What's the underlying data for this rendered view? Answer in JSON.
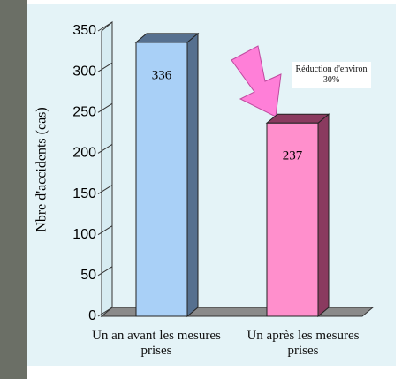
{
  "chart_data": {
    "type": "bar",
    "y_label": "Nbre d'accidents (cas)",
    "annotation": "Réduction d'environ 30%",
    "categories": [
      "Un an avant les mesures prises",
      "Un après les mesures prises"
    ],
    "series": [
      {
        "values": [
          336,
          237
        ],
        "colors": [
          "#a9d0f7",
          "#ff8fcc"
        ]
      }
    ],
    "ylim": [
      0,
      350
    ],
    "yticks": [
      0,
      50,
      100,
      150,
      200,
      250,
      300,
      350
    ],
    "grid": false
  }
}
